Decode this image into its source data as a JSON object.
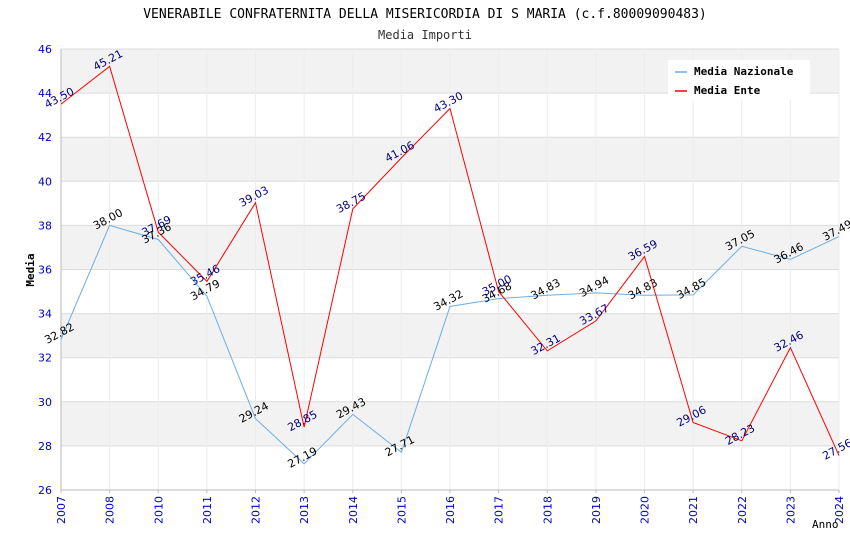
{
  "chart_data": {
    "type": "line",
    "title": "VENERABILE CONFRATERNITA DELLA MISERICORDIA DI S MARIA (c.f.80009090483)",
    "subtitle": "Media Importi",
    "xlabel": "Anno",
    "ylabel": "Media",
    "ylim": [
      26,
      46
    ],
    "yticks": [
      "26",
      "28",
      "30",
      "32",
      "34",
      "36",
      "38",
      "40",
      "42",
      "44",
      "46"
    ],
    "categories": [
      "2007",
      "2008",
      "2010",
      "2011",
      "2012",
      "2013",
      "2014",
      "2015",
      "2016",
      "2017",
      "2018",
      "2019",
      "2020",
      "2021",
      "2022",
      "2023",
      "2024"
    ],
    "legend_position": "top-right",
    "series": [
      {
        "name": "Media Nazionale",
        "color": "#6aaeea",
        "label_color": "#000000",
        "values": [
          32.82,
          38.0,
          37.36,
          34.79,
          29.24,
          27.19,
          29.43,
          27.71,
          34.32,
          34.68,
          34.83,
          34.94,
          34.83,
          34.85,
          37.05,
          36.46,
          37.49
        ],
        "labels": [
          "32.82",
          "38.00",
          "37.36",
          "34.79",
          "29.24",
          "27.19",
          "29.43",
          "27.71",
          "34.32",
          "34.68",
          "34.83",
          "34.94",
          "34.83",
          "34.85",
          "37.05",
          "36.46",
          "37.49"
        ]
      },
      {
        "name": "Media Ente",
        "color": "#ff0000",
        "label_color": "#000080",
        "values": [
          43.5,
          45.21,
          37.69,
          35.46,
          39.03,
          28.85,
          38.75,
          41.06,
          43.3,
          35.0,
          32.31,
          33.67,
          36.59,
          29.06,
          28.23,
          32.46,
          27.56
        ],
        "labels": [
          "43.50",
          "45.21",
          "37.69",
          "35.46",
          "39.03",
          "28.85",
          "38.75",
          "41.06",
          "43.30",
          "35.00",
          "32.31",
          "33.67",
          "36.59",
          "29.06",
          "28.23",
          "32.46",
          "27.56"
        ]
      }
    ]
  }
}
